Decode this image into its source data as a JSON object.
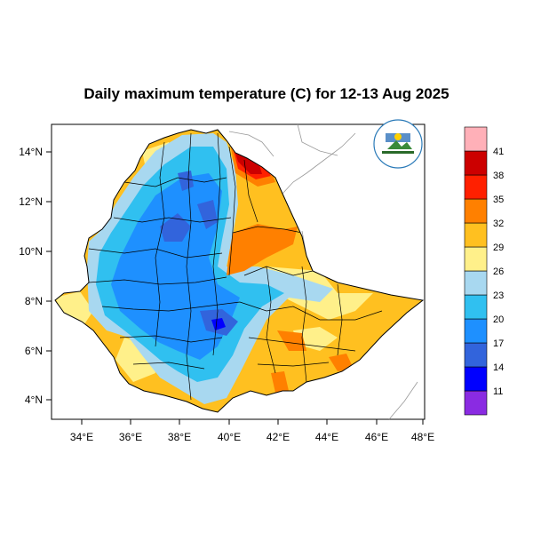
{
  "title": "Daily maximum temperature (C) for 12-13 Aug 2025",
  "map": {
    "lon_ticks": [
      "34°E",
      "36°E",
      "38°E",
      "40°E",
      "42°E",
      "44°E",
      "46°E",
      "48°E"
    ],
    "lat_ticks": [
      "14°N",
      "12°N",
      "10°N",
      "8°N",
      "6°N",
      "4°N"
    ],
    "lon_range": [
      32.9,
      48.1
    ],
    "lat_range": [
      3.2,
      15.1
    ]
  },
  "colorbar": {
    "colors": [
      "#8a2be2",
      "#0000ff",
      "#3264dc",
      "#1e90ff",
      "#30c0f0",
      "#a8d8f0",
      "#fff08a",
      "#ffc020",
      "#ff8000",
      "#ff2000",
      "#cc0000",
      "#ffb0b8"
    ],
    "labels": [
      "11",
      "14",
      "17",
      "20",
      "23",
      "26",
      "29",
      "32",
      "35",
      "38",
      "41"
    ]
  },
  "colors": {
    "frame": "#000000",
    "border": "#000000",
    "neighbor": "#999999"
  }
}
